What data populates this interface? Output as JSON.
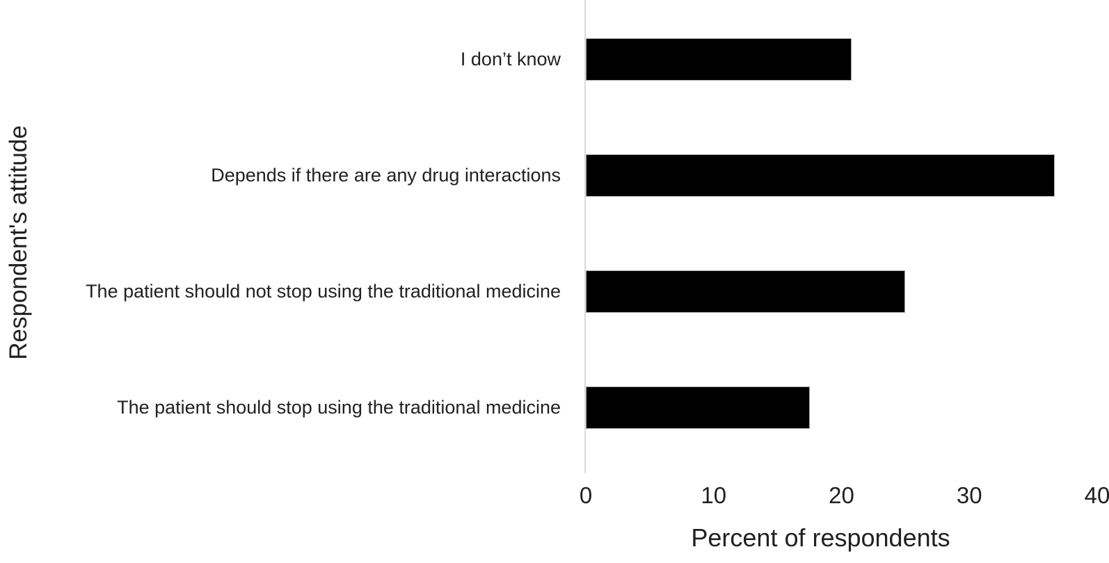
{
  "chart_data": {
    "type": "bar",
    "orientation": "horizontal",
    "title": "",
    "categories": [
      "I don’t know",
      "Depends if there are any drug interactions",
      "The patient should not stop using the traditional medicine",
      "The patient should stop using the traditional medicine"
    ],
    "values": [
      20.8,
      36.7,
      25.0,
      17.5
    ],
    "xlabel": "Percent of respondents",
    "ylabel": "Respondent's attitude",
    "xlim": [
      0,
      40
    ],
    "x_ticks": [
      "0",
      "10",
      "20",
      "30",
      "40"
    ],
    "grid": false,
    "legend": false,
    "bar_color": "#000000",
    "bar_border_color": "#a6a6a6",
    "axis_line_color": "#d9d9d9",
    "text_color": "#212121"
  }
}
